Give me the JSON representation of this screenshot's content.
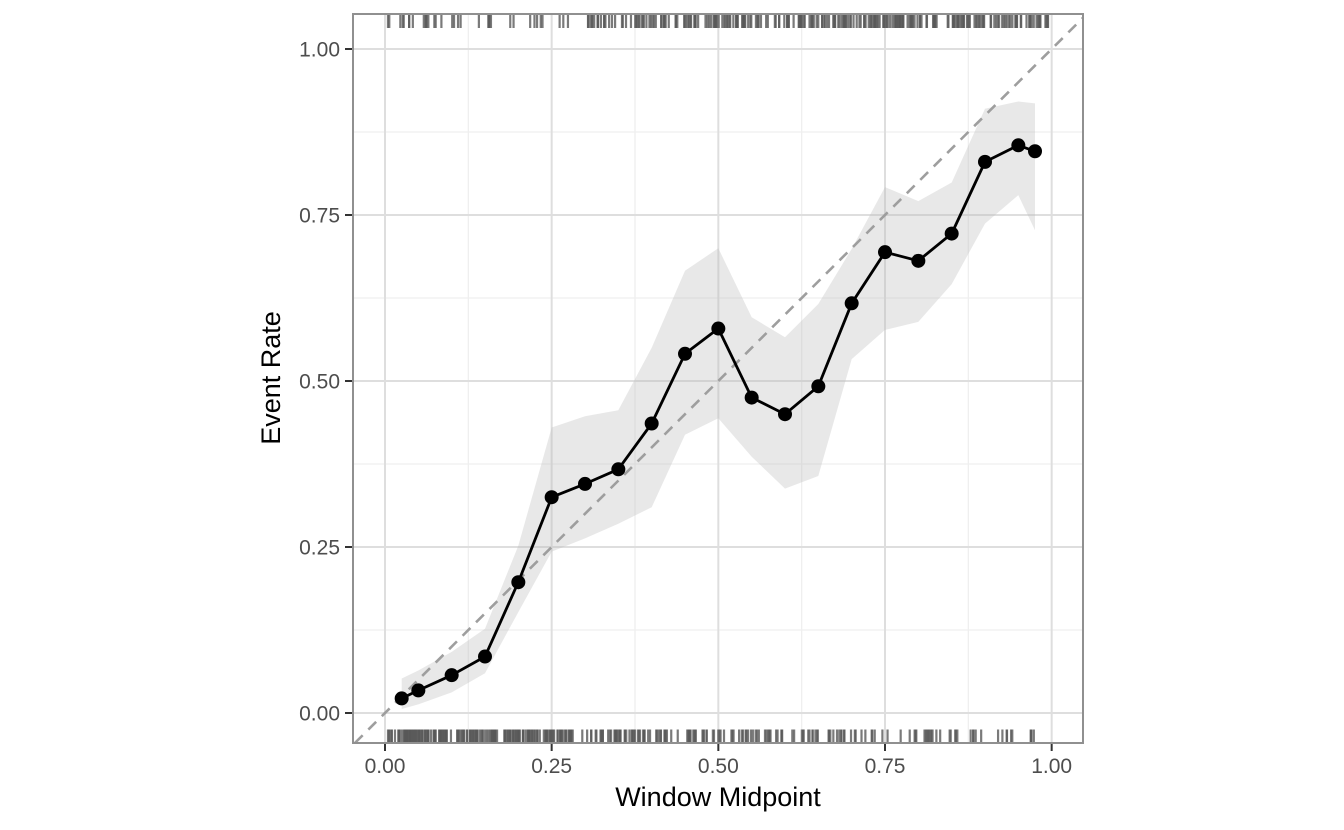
{
  "figure_type": "calibration-plot",
  "chart_data": {
    "type": "line",
    "title": "",
    "xlabel": "Window Midpoint",
    "ylabel": "Event Rate",
    "x_tick_labels": [
      "0.00",
      "0.25",
      "0.50",
      "0.75",
      "1.00"
    ],
    "x_tick_values": [
      0,
      0.25,
      0.5,
      0.75,
      1
    ],
    "y_tick_labels": [
      "0.00",
      "0.25",
      "0.50",
      "0.75",
      "1.00"
    ],
    "y_tick_values": [
      0,
      0.25,
      0.5,
      0.75,
      1
    ],
    "minor_tick_values": [
      0.125,
      0.375,
      0.625,
      0.875
    ],
    "xlim": [
      -0.048,
      1.047
    ],
    "ylim": [
      -0.045,
      1.053
    ],
    "grid": "major+minor",
    "legend": "none",
    "x": [
      0.025,
      0.05,
      0.1,
      0.15,
      0.2,
      0.25,
      0.3,
      0.35,
      0.4,
      0.45,
      0.5,
      0.55,
      0.6,
      0.65,
      0.7,
      0.75,
      0.8,
      0.85,
      0.9,
      0.95,
      0.975
    ],
    "series": [
      {
        "name": "event_rate",
        "values": [
          0.022,
          0.034,
          0.057,
          0.085,
          0.197,
          0.325,
          0.345,
          0.367,
          0.436,
          0.541,
          0.579,
          0.475,
          0.45,
          0.492,
          0.617,
          0.694,
          0.681,
          0.722,
          0.83,
          0.855,
          0.846
        ]
      },
      {
        "name": "ci_lower",
        "values": [
          0.006,
          0.013,
          0.031,
          0.06,
          0.152,
          0.243,
          0.263,
          0.285,
          0.31,
          0.419,
          0.444,
          0.386,
          0.338,
          0.357,
          0.533,
          0.577,
          0.589,
          0.646,
          0.737,
          0.78,
          0.727
        ]
      },
      {
        "name": "ci_upper",
        "values": [
          0.052,
          0.064,
          0.092,
          0.127,
          0.252,
          0.43,
          0.447,
          0.456,
          0.55,
          0.666,
          0.7,
          0.596,
          0.566,
          0.616,
          0.699,
          0.792,
          0.771,
          0.799,
          0.91,
          0.921,
          0.918
        ]
      }
    ],
    "reference_line": {
      "type": "identity-diagonal",
      "from": [
        0,
        0
      ],
      "to": [
        1,
        1
      ],
      "style": "dashed"
    },
    "rug_top_segments": [
      {
        "from": 0.004,
        "to": 0.008,
        "count": 2
      },
      {
        "from": 0.018,
        "to": 0.042,
        "count": 6
      },
      {
        "from": 0.05,
        "to": 0.085,
        "count": 8
      },
      {
        "from": 0.1,
        "to": 0.125,
        "count": 4
      },
      {
        "from": 0.14,
        "to": 0.165,
        "count": 5
      },
      {
        "from": 0.185,
        "to": 0.195,
        "count": 2
      },
      {
        "from": 0.21,
        "to": 0.24,
        "count": 5
      },
      {
        "from": 0.26,
        "to": 0.285,
        "count": 3
      },
      {
        "from": 0.3,
        "to": 0.36,
        "count": 18
      },
      {
        "from": 0.36,
        "to": 0.44,
        "count": 26
      },
      {
        "from": 0.44,
        "to": 0.52,
        "count": 30
      },
      {
        "from": 0.52,
        "to": 0.6,
        "count": 28
      },
      {
        "from": 0.6,
        "to": 0.68,
        "count": 34
      },
      {
        "from": 0.68,
        "to": 0.76,
        "count": 36
      },
      {
        "from": 0.76,
        "to": 0.84,
        "count": 36
      },
      {
        "from": 0.84,
        "to": 0.92,
        "count": 34
      },
      {
        "from": 0.92,
        "to": 0.995,
        "count": 30
      }
    ],
    "rug_bottom_segments": [
      {
        "from": 0.003,
        "to": 0.1,
        "count": 72
      },
      {
        "from": 0.1,
        "to": 0.2,
        "count": 62
      },
      {
        "from": 0.2,
        "to": 0.26,
        "count": 40
      },
      {
        "from": 0.26,
        "to": 0.36,
        "count": 42
      },
      {
        "from": 0.36,
        "to": 0.46,
        "count": 34
      },
      {
        "from": 0.46,
        "to": 0.56,
        "count": 28
      },
      {
        "from": 0.56,
        "to": 0.66,
        "count": 24
      },
      {
        "from": 0.66,
        "to": 0.76,
        "count": 20
      },
      {
        "from": 0.76,
        "to": 0.82,
        "count": 12
      },
      {
        "from": 0.82,
        "to": 0.86,
        "count": 8
      },
      {
        "from": 0.875,
        "to": 0.895,
        "count": 5
      },
      {
        "from": 0.91,
        "to": 0.945,
        "count": 6
      },
      {
        "from": 0.96,
        "to": 0.99,
        "count": 4
      }
    ]
  },
  "colors": {
    "line": "#000000",
    "point": "#000000",
    "ribbon": "#bdbdbd",
    "reference": "#9e9e9e",
    "grid_major": "#dedede",
    "grid_minor": "#efefef",
    "panel_border": "#909090",
    "tick_mark": "#333333",
    "tick_label": "#4d4d4d",
    "axis_title": "#000000",
    "rug": "#595959"
  }
}
